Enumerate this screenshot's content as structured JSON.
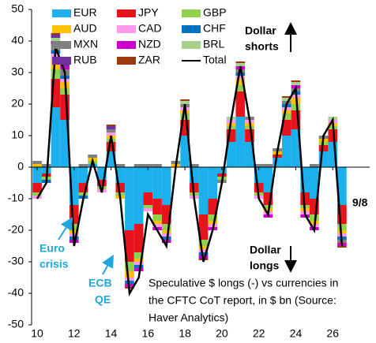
{
  "chart_data": {
    "type": "stacked-bar-line",
    "x": [
      2010,
      2010.5,
      2011,
      2011.5,
      2012,
      2012.5,
      2013,
      2013.5,
      2014,
      2014.5,
      2015,
      2015.5,
      2016,
      2016.5,
      2017,
      2017.5,
      2018,
      2018.5,
      2019,
      2019.5,
      2020,
      2020.5,
      2021,
      2021.5,
      2022,
      2022.5,
      2023,
      2023.5,
      2024,
      2024.5,
      2025,
      2025.5,
      2026,
      2026.5
    ],
    "series": [
      {
        "name": "EUR",
        "color": "#1cb0ec",
        "values": [
          -5,
          -2,
          19,
          15,
          -12,
          -5,
          1,
          -4,
          5,
          -5,
          -20,
          -18,
          -8,
          -10,
          -12,
          0,
          10,
          -5,
          -15,
          -10,
          -2,
          8,
          16,
          8,
          -5,
          -8,
          3,
          10,
          12,
          -8,
          -10,
          5,
          8,
          -12
        ]
      },
      {
        "name": "JPY",
        "color": "#e8141b",
        "values": [
          -3,
          -1,
          9,
          8,
          -6,
          -3,
          0,
          -2,
          3,
          -3,
          -10,
          -9,
          -4,
          -5,
          -6,
          0,
          5,
          -3,
          -8,
          -5,
          -1,
          4,
          8,
          4,
          -3,
          -4,
          1,
          5,
          6,
          -4,
          -5,
          2,
          4,
          -6
        ]
      },
      {
        "name": "GBP",
        "color": "#92d050",
        "values": [
          -1,
          -1,
          3,
          2,
          -2,
          -1,
          1,
          -1,
          1,
          -1,
          -3,
          -2,
          -1,
          -2,
          -2,
          0,
          2,
          -1,
          -2,
          -2,
          -1,
          1,
          2,
          1,
          -1,
          -1,
          0,
          2,
          2,
          -1,
          -2,
          1,
          1,
          -2
        ]
      },
      {
        "name": "AUD",
        "color": "#ffc000",
        "values": [
          1,
          0,
          3,
          2,
          -1,
          0,
          1,
          0,
          1,
          -1,
          -2,
          -1,
          0,
          -1,
          -1,
          1,
          1,
          0,
          -1,
          -1,
          0,
          1,
          2,
          1,
          0,
          -1,
          1,
          1,
          2,
          -1,
          -1,
          1,
          1,
          -1
        ]
      },
      {
        "name": "CAD",
        "color": "#ff99ee",
        "values": [
          -1,
          0,
          2,
          1,
          -1,
          0,
          0,
          -1,
          1,
          0,
          -1,
          -1,
          -1,
          -1,
          -1,
          0,
          1,
          -1,
          -1,
          -1,
          0,
          1,
          1,
          1,
          -1,
          -1,
          0,
          1,
          1,
          -1,
          -1,
          0,
          1,
          -1
        ]
      },
      {
        "name": "CHF",
        "color": "#0070c0",
        "values": [
          0,
          -1,
          1,
          1,
          -1,
          -1,
          0,
          0,
          0,
          0,
          -1,
          -1,
          0,
          0,
          -1,
          0,
          0,
          0,
          -1,
          0,
          0,
          0,
          1,
          0,
          0,
          0,
          0,
          1,
          1,
          0,
          0,
          0,
          0,
          -1
        ]
      },
      {
        "name": "MXN",
        "color": "#808080",
        "values": [
          1,
          1,
          2,
          2,
          0,
          1,
          1,
          0,
          1,
          1,
          0,
          1,
          1,
          1,
          0,
          1,
          1,
          1,
          0,
          0,
          -1,
          0,
          1,
          1,
          1,
          1,
          1,
          1,
          1,
          0,
          1,
          1,
          0,
          -1
        ]
      },
      {
        "name": "NZD",
        "color": "#cc00cc",
        "values": [
          0,
          0,
          1,
          1,
          -1,
          0,
          0,
          0,
          0,
          0,
          -1,
          -1,
          0,
          -1,
          -1,
          0,
          0,
          0,
          -1,
          -1,
          0,
          0,
          1,
          0,
          0,
          -1,
          0,
          0,
          1,
          -1,
          -1,
          0,
          0,
          -1
        ]
      },
      {
        "name": "BRL",
        "color": "#a9d18e",
        "values": [
          0,
          0,
          1,
          0,
          0,
          0,
          0,
          0,
          0,
          0,
          0,
          0,
          0,
          0,
          0,
          0,
          1,
          0,
          0,
          0,
          0,
          1,
          1,
          0,
          0,
          0,
          0,
          1,
          1,
          0,
          0,
          0,
          1,
          0
        ]
      },
      {
        "name": "RUB",
        "color": "#7030a0",
        "values": [
          0,
          0,
          1,
          1,
          0,
          0,
          0,
          0,
          1,
          0,
          0,
          0,
          0,
          0,
          0,
          0,
          0,
          0,
          0,
          0,
          0,
          0,
          0,
          0,
          0,
          0,
          0,
          0,
          0,
          0,
          0,
          0,
          0,
          0
        ]
      },
      {
        "name": "ZAR",
        "color": "#9c3a0f",
        "values": [
          0,
          0,
          0.5,
          0.5,
          0,
          0,
          0,
          0,
          0.5,
          0,
          -0.5,
          0,
          0,
          0,
          0,
          0,
          0.5,
          0,
          -0.5,
          0,
          0,
          0,
          0.5,
          0,
          0,
          0,
          0,
          0.5,
          0.5,
          0,
          0,
          0,
          0,
          -0.5
        ]
      },
      {
        "name": "Total",
        "color": "#000000",
        "values": [
          -10,
          -5,
          38,
          30,
          -25,
          -10,
          2,
          -8,
          10,
          -10,
          -40,
          -35,
          -15,
          -20,
          -25,
          0,
          20,
          -10,
          -30,
          -20,
          -5,
          15,
          32,
          15,
          -10,
          -15,
          5,
          20,
          25,
          -15,
          -20,
          10,
          15,
          -25
        ]
      }
    ],
    "xlim": [
      2009.7,
      2028
    ],
    "xticks": [
      {
        "value": 2010,
        "label": "10"
      },
      {
        "value": 2012,
        "label": "12"
      },
      {
        "value": 2014,
        "label": "14"
      },
      {
        "value": 2016,
        "label": "16"
      },
      {
        "value": 2018,
        "label": "18"
      },
      {
        "value": 2020,
        "label": "20"
      },
      {
        "value": 2022,
        "label": "22"
      },
      {
        "value": 2024,
        "label": "24"
      },
      {
        "value": 2026,
        "label": "26"
      }
    ],
    "ylim": [
      -50,
      50
    ],
    "yticks": [
      -50,
      -40,
      -30,
      -20,
      -10,
      0,
      10,
      20,
      30,
      40,
      50
    ],
    "annotations": {
      "dollar_shorts": [
        "Dollar",
        "shorts"
      ],
      "dollar_longs": [
        "Dollar",
        "longs"
      ],
      "date": "9/8",
      "euro_crisis": [
        "Euro",
        "crisis"
      ],
      "ecb_qe": [
        "ECB",
        "QE"
      ],
      "source": [
        "Speculative $ longs (-) vs currencies in",
        "the CFTC CoT report, in $ bn (Source:",
        "Haver Analytics)"
      ]
    }
  }
}
